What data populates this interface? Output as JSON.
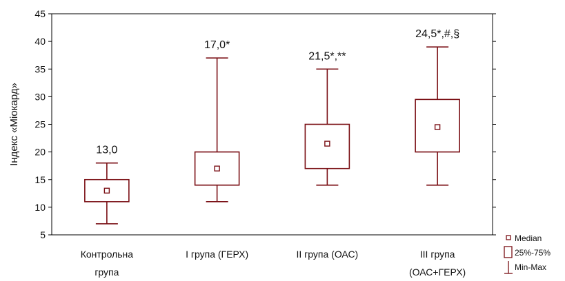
{
  "chart_data": {
    "type": "boxplot",
    "ylabel": "Індекс «Міокард»",
    "ylim": [
      5,
      45
    ],
    "yticks": [
      5,
      10,
      15,
      20,
      25,
      30,
      35,
      40,
      45
    ],
    "categories": [
      [
        "Контрольна",
        "група"
      ],
      [
        "І група (ГЕРХ)"
      ],
      [
        "ІІ група (ОАС)"
      ],
      [
        "ІІІ група",
        "(ОАС+ГЕРХ)"
      ]
    ],
    "boxes": [
      {
        "min": 7,
        "q1": 11,
        "median": 13,
        "q3": 15,
        "max": 18,
        "label": "13,0"
      },
      {
        "min": 11,
        "q1": 14,
        "median": 17,
        "q3": 20,
        "max": 37,
        "label": "17,0*"
      },
      {
        "min": 14,
        "q1": 17,
        "median": 21.5,
        "q3": 25,
        "max": 35,
        "label": "21,5*,**"
      },
      {
        "min": 14,
        "q1": 20,
        "median": 24.5,
        "q3": 29.5,
        "max": 39,
        "label": "24,5*,#,§"
      }
    ],
    "legend": {
      "position": "bottom-right",
      "items": [
        "Median",
        "25%-75%",
        "Min-Max"
      ]
    },
    "grid": false,
    "color": "#7a0f14"
  }
}
